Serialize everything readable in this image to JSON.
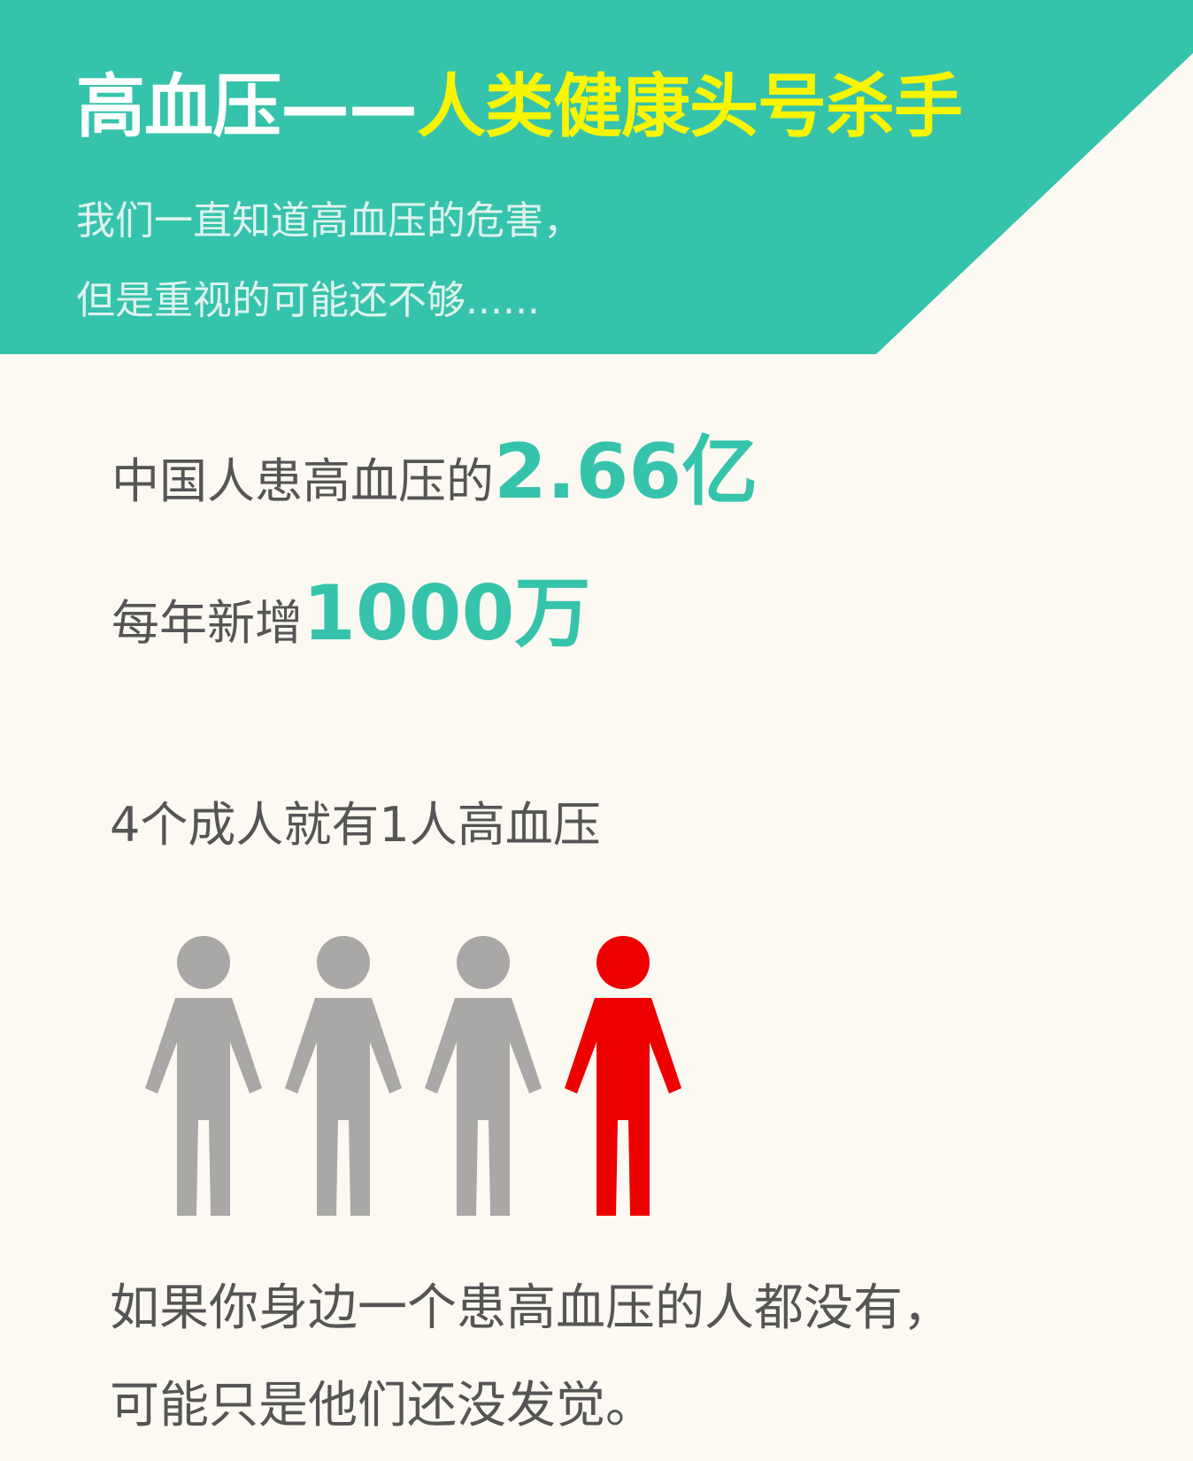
{
  "header": {
    "title_main": "高血压——",
    "title_highlight": "人类健康头号杀手",
    "subtitle_line1": "我们一直知道高血压的危害，",
    "subtitle_line2": "但是重视的可能还不够......",
    "banner_color": "#36c3ab",
    "highlight_color": "#f8f500"
  },
  "stats": [
    {
      "label": "中国人患高血压的",
      "value": "2.66亿"
    },
    {
      "label": "每年新增",
      "value": "1000万"
    }
  ],
  "ratio": {
    "text": "4个成人就有1人高血压",
    "total": 4,
    "affected": 1,
    "person_icon": "person-icon",
    "normal_color": "#aaa8a6",
    "affected_color": "#ee0000"
  },
  "footer": {
    "line1": "如果你身边一个患高血压的人都没有，",
    "line2": "可能只是他们还没发觉。"
  }
}
